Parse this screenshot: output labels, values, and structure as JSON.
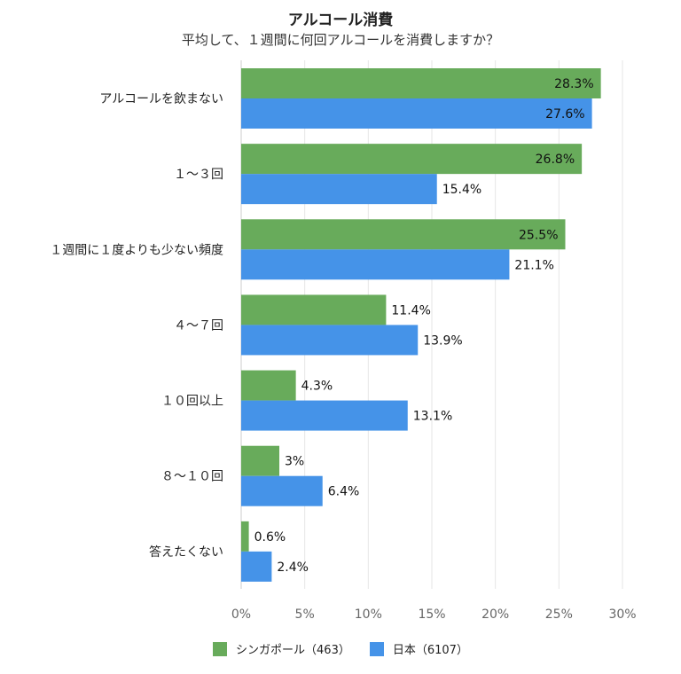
{
  "colors": {
    "singapore": "#68ab5b",
    "japan": "#4593e8",
    "grid": "#e6e6e6"
  },
  "chart_data": {
    "type": "bar",
    "orientation": "horizontal",
    "title": "アルコール消費",
    "subtitle": "平均して、１週間に何回アルコールを消費しますか？",
    "categories": [
      "アルコールを飲まない",
      "１〜３回",
      "１週間に１度よりも少ない頻度",
      "４〜７回",
      "１０回以上",
      "８〜１０回",
      "答えたくない"
    ],
    "series": [
      {
        "name": "シンガポール（463）",
        "color": "#68ab5b",
        "values": [
          28.3,
          26.8,
          25.5,
          11.4,
          4.3,
          3,
          0.6
        ],
        "labels": [
          "28.3%",
          "26.8%",
          "25.5%",
          "11.4%",
          "4.3%",
          "3%",
          "0.6%"
        ]
      },
      {
        "name": "日本（6107）",
        "color": "#4593e8",
        "values": [
          27.6,
          15.4,
          21.1,
          13.9,
          13.1,
          6.4,
          2.4
        ],
        "labels": [
          "27.6%",
          "15.4%",
          "21.1%",
          "13.9%",
          "13.1%",
          "6.4%",
          "2.4%"
        ]
      }
    ],
    "xlim": [
      0,
      30
    ],
    "xticks": [
      0,
      5,
      10,
      15,
      20,
      25,
      30
    ],
    "xtick_labels": [
      "0%",
      "5%",
      "10%",
      "15%",
      "20%",
      "25%",
      "30%"
    ],
    "grid": true,
    "legend_position": "bottom"
  }
}
